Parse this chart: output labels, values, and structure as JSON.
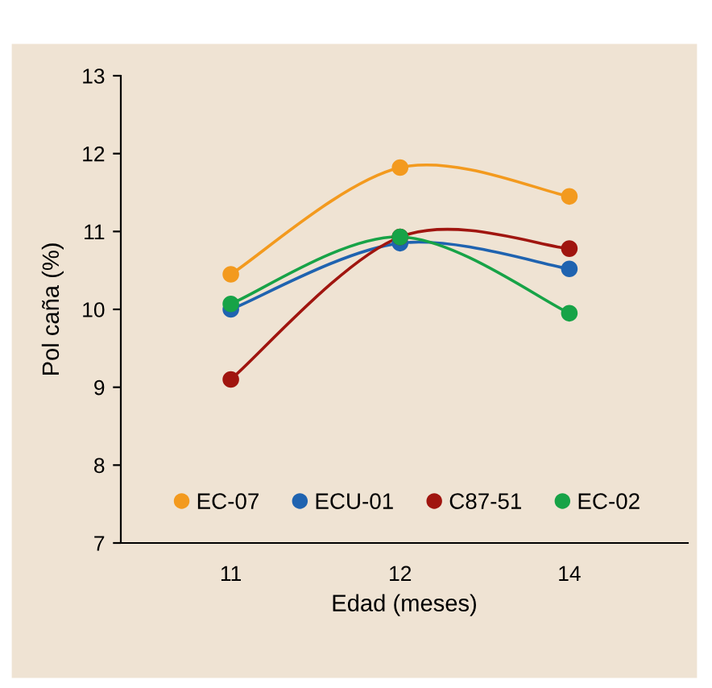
{
  "chart_data": {
    "type": "line",
    "xlabel": "Edad (meses)",
    "ylabel": "Pol caña (%)",
    "categories": [
      "11",
      "12",
      "14"
    ],
    "series": [
      {
        "name": "EC-07",
        "color": "#f39a1e",
        "values": [
          10.45,
          11.82,
          11.45
        ]
      },
      {
        "name": "ECU-01",
        "color": "#1f63b0",
        "values": [
          10.0,
          10.85,
          10.52
        ]
      },
      {
        "name": "C87-51",
        "color": "#a0150f",
        "values": [
          9.1,
          10.93,
          10.78
        ]
      },
      {
        "name": "EC-02",
        "color": "#17a347",
        "values": [
          10.07,
          10.93,
          9.95
        ]
      }
    ],
    "ylim": [
      7,
      13
    ],
    "yticks": [
      7,
      8,
      9,
      10,
      11,
      12,
      13
    ],
    "grid": false,
    "legend": "bottom",
    "marker": "circle",
    "line_style": "solid"
  }
}
